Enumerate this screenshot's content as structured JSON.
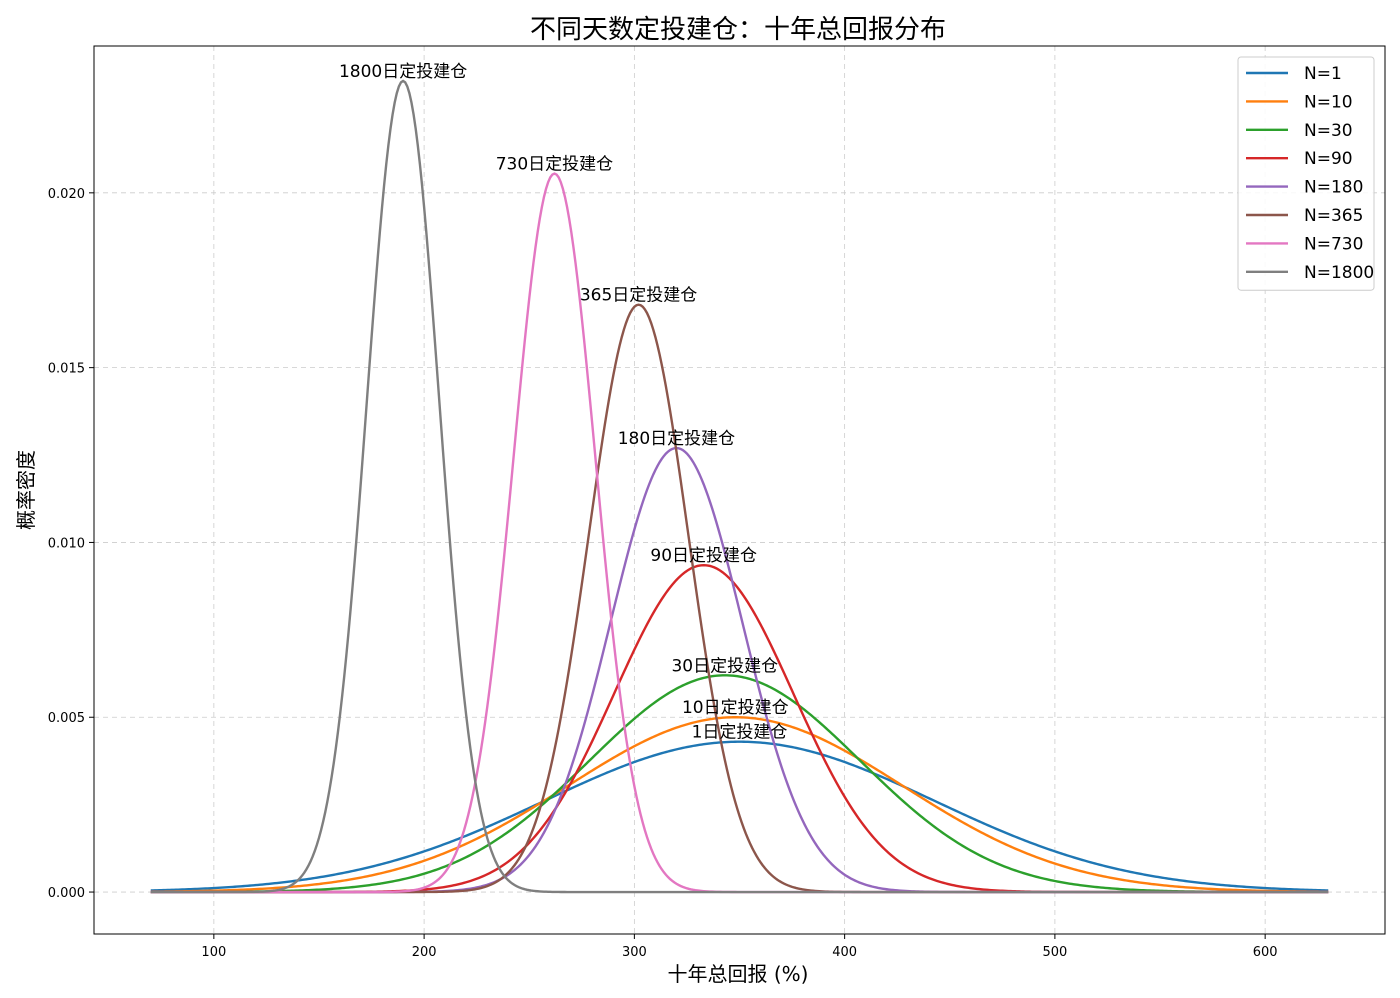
{
  "chart_data": {
    "type": "line",
    "title": "不同天数定投建仓：十年总回报分布",
    "xlabel": "十年总回报 (%)",
    "ylabel": "概率密度",
    "xlim": [
      43,
      657
    ],
    "ylim": [
      -0.0012,
      0.0242
    ],
    "xticks": [
      100,
      200,
      300,
      400,
      500,
      600
    ],
    "xtick_labels": [
      "100",
      "200",
      "300",
      "400",
      "500",
      "600"
    ],
    "yticks": [
      0.0,
      0.005,
      0.01,
      0.015,
      0.02
    ],
    "ytick_labels": [
      "0.000",
      "0.005",
      "0.010",
      "0.015",
      "0.020"
    ],
    "x_range": [
      70,
      630
    ],
    "grid": true,
    "legend_position": "top-right",
    "series": [
      {
        "name": "N=1",
        "color": "#1f77b4",
        "mean": 350,
        "peak": 0.0043,
        "annotation": "1日定投建仓"
      },
      {
        "name": "N=10",
        "color": "#ff7f0e",
        "mean": 348,
        "peak": 0.005,
        "annotation": "10日定投建仓"
      },
      {
        "name": "N=30",
        "color": "#2ca02c",
        "mean": 343,
        "peak": 0.0062,
        "annotation": "30日定投建仓"
      },
      {
        "name": "N=90",
        "color": "#d62728",
        "mean": 333,
        "peak": 0.00935,
        "annotation": "90日定投建仓"
      },
      {
        "name": "N=180",
        "color": "#9467bd",
        "mean": 320,
        "peak": 0.0127,
        "annotation": "180日定投建仓"
      },
      {
        "name": "N=365",
        "color": "#8c564b",
        "mean": 302,
        "peak": 0.0168,
        "annotation": "365日定投建仓"
      },
      {
        "name": "N=730",
        "color": "#e377c2",
        "mean": 262,
        "peak": 0.02055,
        "annotation": "730日定投建仓"
      },
      {
        "name": "N=1800",
        "color": "#7f7f7f",
        "mean": 190,
        "peak": 0.0232,
        "annotation": "1800日定投建仓"
      }
    ]
  }
}
